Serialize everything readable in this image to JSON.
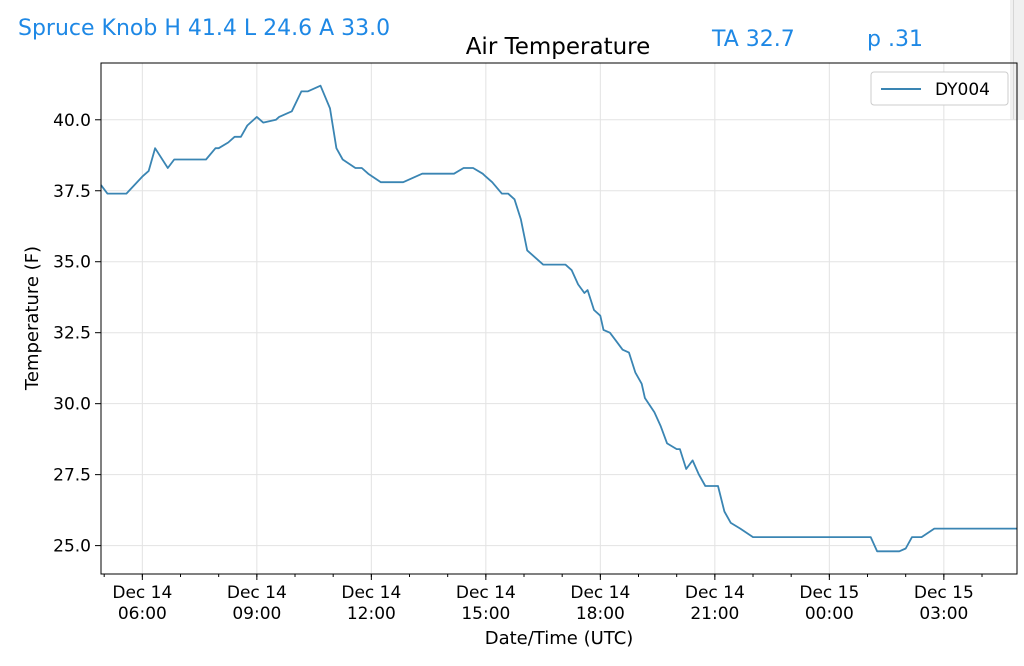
{
  "header": {
    "station_summary": "Spruce Knob  H 41.4 L 24.6 A 33.0",
    "ta": "TA 32.7",
    "p": "p .31"
  },
  "colors": {
    "header_text": "#1e88e5",
    "series_line": "#3a85b3"
  },
  "chart_data": {
    "type": "line",
    "title": "Air Temperature",
    "xlabel": "Date/Time (UTC)",
    "ylabel": "Temperature (F)",
    "legend_placement": "top-right",
    "grid": true,
    "xlim": [
      "2017-12-14T04:55",
      "2017-12-15T04:55"
    ],
    "ylim": [
      24.0,
      42.0
    ],
    "x_ticks": [
      {
        "t": "2017-12-14T06:00",
        "label": [
          "Dec 14",
          "06:00"
        ]
      },
      {
        "t": "2017-12-14T09:00",
        "label": [
          "Dec 14",
          "09:00"
        ]
      },
      {
        "t": "2017-12-14T12:00",
        "label": [
          "Dec 14",
          "12:00"
        ]
      },
      {
        "t": "2017-12-14T15:00",
        "label": [
          "Dec 14",
          "15:00"
        ]
      },
      {
        "t": "2017-12-14T18:00",
        "label": [
          "Dec 14",
          "18:00"
        ]
      },
      {
        "t": "2017-12-14T21:00",
        "label": [
          "Dec 14",
          "21:00"
        ]
      },
      {
        "t": "2017-12-15T00:00",
        "label": [
          "Dec 15",
          "00:00"
        ]
      },
      {
        "t": "2017-12-15T03:00",
        "label": [
          "Dec 15",
          "03:00"
        ]
      }
    ],
    "y_ticks": [
      25.0,
      27.5,
      30.0,
      32.5,
      35.0,
      37.5,
      40.0
    ],
    "series": [
      {
        "name": "DY004",
        "x": [
          "2017-12-14T04:55",
          "2017-12-14T05:05",
          "2017-12-14T05:35",
          "2017-12-14T06:00",
          "2017-12-14T06:10",
          "2017-12-14T06:20",
          "2017-12-14T06:40",
          "2017-12-14T06:50",
          "2017-12-14T07:10",
          "2017-12-14T07:30",
          "2017-12-14T07:40",
          "2017-12-14T07:55",
          "2017-12-14T08:00",
          "2017-12-14T08:15",
          "2017-12-14T08:25",
          "2017-12-14T08:35",
          "2017-12-14T08:45",
          "2017-12-14T09:00",
          "2017-12-14T09:10",
          "2017-12-14T09:30",
          "2017-12-14T09:35",
          "2017-12-14T09:55",
          "2017-12-14T10:10",
          "2017-12-14T10:20",
          "2017-12-14T10:40",
          "2017-12-14T10:55",
          "2017-12-14T11:05",
          "2017-12-14T11:15",
          "2017-12-14T11:35",
          "2017-12-14T11:45",
          "2017-12-14T11:55",
          "2017-12-14T12:15",
          "2017-12-14T12:35",
          "2017-12-14T12:50",
          "2017-12-14T13:20",
          "2017-12-14T13:55",
          "2017-12-14T14:10",
          "2017-12-14T14:25",
          "2017-12-14T14:40",
          "2017-12-14T14:55",
          "2017-12-14T15:00",
          "2017-12-14T15:10",
          "2017-12-14T15:25",
          "2017-12-14T15:35",
          "2017-12-14T15:45",
          "2017-12-14T15:55",
          "2017-12-14T16:05",
          "2017-12-14T16:30",
          "2017-12-14T16:50",
          "2017-12-14T17:05",
          "2017-12-14T17:15",
          "2017-12-14T17:25",
          "2017-12-14T17:35",
          "2017-12-14T17:40",
          "2017-12-14T17:50",
          "2017-12-14T18:00",
          "2017-12-14T18:05",
          "2017-12-14T18:15",
          "2017-12-14T18:25",
          "2017-12-14T18:35",
          "2017-12-14T18:45",
          "2017-12-14T18:55",
          "2017-12-14T19:05",
          "2017-12-14T19:10",
          "2017-12-14T19:25",
          "2017-12-14T19:35",
          "2017-12-14T19:45",
          "2017-12-14T20:00",
          "2017-12-14T20:05",
          "2017-12-14T20:15",
          "2017-12-14T20:25",
          "2017-12-14T20:35",
          "2017-12-14T20:45",
          "2017-12-14T20:55",
          "2017-12-14T21:05",
          "2017-12-14T21:15",
          "2017-12-14T21:25",
          "2017-12-14T21:40",
          "2017-12-14T22:00",
          "2017-12-14T23:30",
          "2017-12-15T01:05",
          "2017-12-15T01:15",
          "2017-12-15T01:50",
          "2017-12-15T02:00",
          "2017-12-15T02:10",
          "2017-12-15T02:25",
          "2017-12-15T02:45",
          "2017-12-15T04:55"
        ],
        "y": [
          37.7,
          37.4,
          37.4,
          38.0,
          38.2,
          39.0,
          38.3,
          38.6,
          38.6,
          38.6,
          38.6,
          39.0,
          39.0,
          39.2,
          39.4,
          39.4,
          39.8,
          40.1,
          39.9,
          40.0,
          40.1,
          40.3,
          41.0,
          41.0,
          41.2,
          40.4,
          39.0,
          38.6,
          38.3,
          38.3,
          38.1,
          37.8,
          37.8,
          37.8,
          38.1,
          38.1,
          38.1,
          38.3,
          38.3,
          38.1,
          38.0,
          37.8,
          37.4,
          37.4,
          37.2,
          36.5,
          35.4,
          34.9,
          34.9,
          34.9,
          34.7,
          34.2,
          33.9,
          34.0,
          33.3,
          33.1,
          32.6,
          32.5,
          32.2,
          31.9,
          31.8,
          31.1,
          30.7,
          30.2,
          29.7,
          29.2,
          28.6,
          28.4,
          28.4,
          27.7,
          28.0,
          27.5,
          27.1,
          27.1,
          27.1,
          26.2,
          25.8,
          25.6,
          25.3,
          25.3,
          25.3,
          24.8,
          24.8,
          24.9,
          25.3,
          25.3,
          25.6,
          25.6
        ]
      }
    ]
  }
}
